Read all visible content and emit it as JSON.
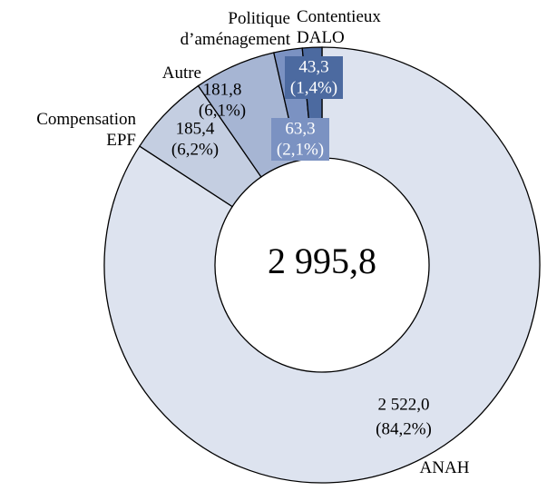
{
  "chart_data": {
    "type": "donut",
    "categories": [
      "ANAH",
      "Compensation EPF",
      "Autre",
      "Politique d’aménagement",
      "Contentieux DALO"
    ],
    "values": [
      2522.0,
      185.4,
      181.8,
      63.3,
      43.3
    ],
    "value_labels": [
      "2 522,0",
      "185,4",
      "181,8",
      "63,3",
      "43,3"
    ],
    "percent_labels": [
      "(84,2%)",
      "(6,2%)",
      "(6,1%)",
      "(2,1%)",
      "(1,4%)"
    ],
    "colors": [
      "#dde3ef",
      "#c4cee1",
      "#a6b5d3",
      "#7b92c2",
      "#4c6aa0"
    ],
    "center_label": "2 995,8"
  }
}
